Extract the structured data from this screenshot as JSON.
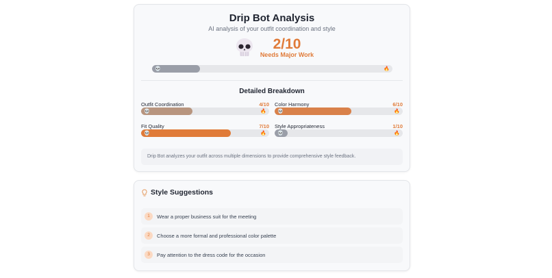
{
  "analysis": {
    "title": "Drip Bot Analysis",
    "subtitle": "AI analysis of your outfit coordination and style",
    "score": "2/10",
    "score_fraction": 0.2,
    "verdict": "Needs Major Work",
    "breakdown_title": "Detailed Breakdown",
    "metrics": [
      {
        "label": "Outfit Coordination",
        "value": "4/10",
        "fraction": 0.4,
        "color": "#b8957f"
      },
      {
        "label": "Color Harmony",
        "value": "6/10",
        "fraction": 0.6,
        "color": "#d9814a"
      },
      {
        "label": "Fit Quality",
        "value": "7/10",
        "fraction": 0.7,
        "color": "#e07b39"
      },
      {
        "label": "Style Appropriateness",
        "value": "1/10",
        "fraction": 0.1,
        "color": "#9a9ea8"
      }
    ],
    "note": "Drip Bot analyzes your outfit across multiple dimensions to provide comprehensive style feedback."
  },
  "suggestions": {
    "title": "Style Suggestions",
    "items": [
      {
        "num": "1",
        "text": "Wear a proper business suit for the meeting"
      },
      {
        "num": "2",
        "text": "Choose a more formal and professional color palette"
      },
      {
        "num": "3",
        "text": "Pay attention to the dress code for the occasion"
      }
    ]
  },
  "colors": {
    "accent": "#e07b39",
    "main_bar": "#9a9ea8",
    "track": "#e6e7ea"
  },
  "icons": {
    "low": "skull-icon",
    "high": "fire-icon",
    "suggestions": "lightbulb-icon"
  }
}
